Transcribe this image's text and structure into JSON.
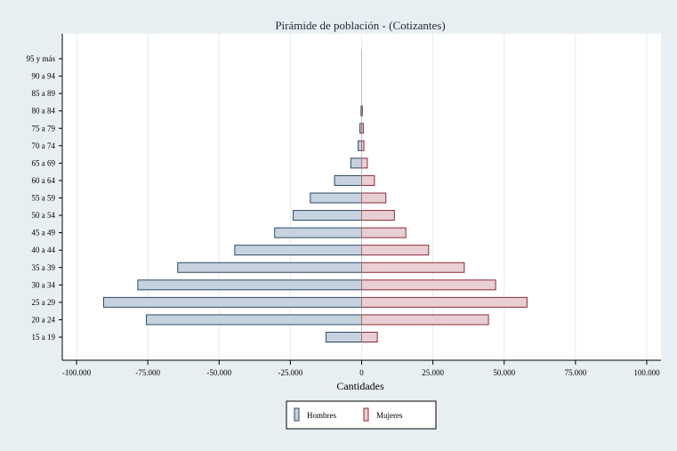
{
  "chart_data": {
    "type": "bar",
    "orientation": "horizontal",
    "title": "Pirámide de población - (Cotizantes)",
    "xlabel": "Cantidades",
    "ylabel": "",
    "xlim": [
      -105000,
      105000
    ],
    "x_ticks": [
      -100000,
      -75000,
      -50000,
      -25000,
      0,
      25000,
      50000,
      75000,
      100000
    ],
    "x_tick_labels": [
      "-100.000",
      "-75.000",
      "-50.000",
      "-25.000",
      "0",
      "25.000",
      "50.000",
      "75.000",
      "100.000"
    ],
    "grid": true,
    "legend_position": "bottom",
    "categories": [
      "95 y más",
      "90 a 94",
      "85 a 89",
      "80 a 84",
      "75 a 79",
      "70 a 74",
      "65 a 69",
      "60 a 64",
      "55 a 59",
      "50 a 54",
      "45 a 49",
      "40 a 44",
      "35 a 39",
      "30 a 34",
      "25 a 29",
      "20 a 24",
      "15 a 19"
    ],
    "series": [
      {
        "name": "Hombres",
        "fill": "#c6d3df",
        "stroke": "#2b4a66",
        "values": [
          0,
          0,
          0,
          -200,
          -600,
          -1200,
          -3800,
          -9500,
          -18000,
          -24000,
          -30500,
          -44500,
          -64500,
          -78500,
          -90500,
          -75500,
          -12500
        ]
      },
      {
        "name": "Mujeres",
        "fill": "#e8cfd3",
        "stroke": "#8e2a36",
        "values": [
          0,
          0,
          0,
          100,
          600,
          800,
          2000,
          4500,
          8500,
          11500,
          15500,
          23500,
          36000,
          47000,
          58000,
          44500,
          5500
        ]
      }
    ]
  }
}
